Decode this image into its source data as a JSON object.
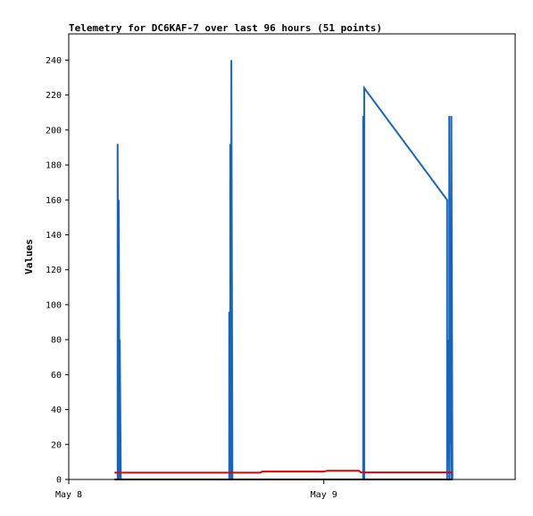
{
  "chart_data": {
    "type": "line",
    "title": "Telemetry for DC6KAF-7 over last 96 hours (51 points)",
    "xlabel": "",
    "ylabel": "Values",
    "x_type": "time",
    "x_ticks": [
      {
        "label": "May 8",
        "hour": 0
      },
      {
        "label": "May 9",
        "hour": 24
      }
    ],
    "xlim_hours": [
      0,
      42
    ],
    "y_ticks": [
      0,
      20,
      40,
      60,
      80,
      100,
      120,
      140,
      160,
      180,
      200,
      220,
      240
    ],
    "ylim": [
      0,
      255
    ],
    "grid": false,
    "legend": "none",
    "series": [
      {
        "color": "#1565c0",
        "points": [
          [
            4.6,
            0
          ],
          [
            4.6,
            192
          ],
          [
            4.7,
            0
          ],
          [
            4.7,
            160
          ],
          [
            4.8,
            0
          ],
          [
            4.8,
            80
          ],
          [
            4.9,
            0
          ],
          [
            15.1,
            0
          ],
          [
            15.1,
            96
          ],
          [
            15.2,
            0
          ],
          [
            15.2,
            192
          ],
          [
            15.3,
            0
          ],
          [
            15.3,
            240
          ],
          [
            15.4,
            0
          ],
          [
            27.7,
            0
          ],
          [
            27.7,
            208
          ],
          [
            27.8,
            0
          ],
          [
            27.8,
            224
          ],
          [
            35.6,
            160
          ],
          [
            35.6,
            0
          ],
          [
            35.7,
            80
          ],
          [
            35.8,
            0
          ],
          [
            35.8,
            208
          ],
          [
            35.9,
            20
          ],
          [
            35.9,
            96
          ],
          [
            36.0,
            0
          ],
          [
            36.0,
            208
          ],
          [
            36.1,
            0
          ]
        ]
      },
      {
        "color": "#e00000",
        "points": [
          [
            4.3,
            3.9
          ],
          [
            18.0,
            3.9
          ],
          [
            18.2,
            4.5
          ],
          [
            24.0,
            4.5
          ],
          [
            24.3,
            5.0
          ],
          [
            27.3,
            5.0
          ],
          [
            27.5,
            4.0
          ],
          [
            36.1,
            4.0
          ]
        ]
      },
      {
        "color": "#000000",
        "points": [
          [
            4.3,
            0
          ],
          [
            36.1,
            0
          ]
        ]
      }
    ]
  }
}
